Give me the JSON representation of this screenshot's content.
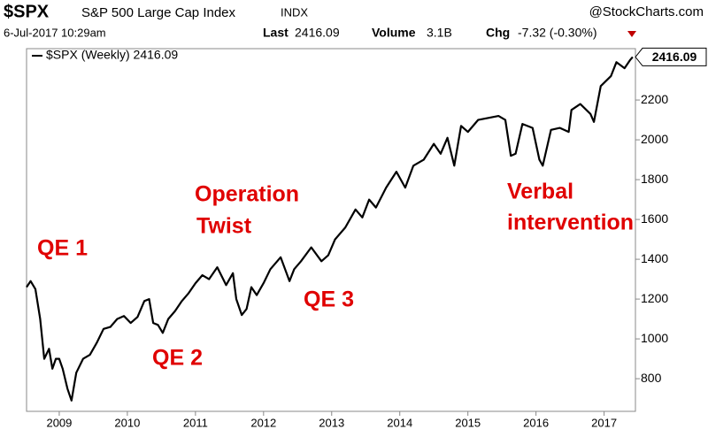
{
  "chart_data": {
    "type": "line",
    "symbol": "$SPX",
    "title": "S&P 500 Large Cap Index",
    "exchange": "INDX",
    "source": "@StockCharts.com",
    "date": "6-Jul-2017 10:29am",
    "last_label": "Last",
    "last": 2416.09,
    "volume_label": "Volume",
    "volume": "3.1B",
    "change_label": "Chg",
    "change": "-7.32 (-0.30%)",
    "annotations": [
      "QE 1",
      "Operation",
      "Twist",
      "QE 2",
      "QE 3",
      "Verbal",
      "intervention"
    ],
    "x": [
      2008.52,
      2008.58,
      2008.65,
      2008.72,
      2008.78,
      2008.85,
      2008.9,
      2008.95,
      2009.0,
      2009.05,
      2009.12,
      2009.18,
      2009.25,
      2009.35,
      2009.45,
      2009.55,
      2009.65,
      2009.75,
      2009.85,
      2009.95,
      2010.05,
      2010.15,
      2010.25,
      2010.32,
      2010.38,
      2010.45,
      2010.52,
      2010.6,
      2010.7,
      2010.8,
      2010.9,
      2011.0,
      2011.1,
      2011.2,
      2011.32,
      2011.45,
      2011.55,
      2011.6,
      2011.68,
      2011.75,
      2011.82,
      2011.9,
      2012.0,
      2012.1,
      2012.25,
      2012.38,
      2012.45,
      2012.55,
      2012.7,
      2012.85,
      2012.95,
      2013.05,
      2013.2,
      2013.35,
      2013.45,
      2013.55,
      2013.65,
      2013.8,
      2013.95,
      2014.08,
      2014.2,
      2014.35,
      2014.5,
      2014.6,
      2014.7,
      2014.8,
      2014.9,
      2015.0,
      2015.15,
      2015.3,
      2015.45,
      2015.55,
      2015.63,
      2015.7,
      2015.8,
      2015.95,
      2016.05,
      2016.1,
      2016.22,
      2016.35,
      2016.48,
      2016.52,
      2016.65,
      2016.8,
      2016.85,
      2016.95,
      2017.1,
      2017.18,
      2017.3,
      2017.38,
      2017.42
    ],
    "series": [
      {
        "name": "$SPX (Weekly) 2416.09",
        "color": "#000000",
        "values": [
          1260,
          1290,
          1250,
          1100,
          900,
          950,
          850,
          900,
          900,
          850,
          750,
          690,
          830,
          900,
          920,
          980,
          1050,
          1060,
          1100,
          1115,
          1080,
          1110,
          1190,
          1200,
          1080,
          1070,
          1030,
          1100,
          1140,
          1190,
          1230,
          1280,
          1320,
          1300,
          1360,
          1270,
          1330,
          1200,
          1120,
          1150,
          1260,
          1220,
          1280,
          1350,
          1410,
          1290,
          1350,
          1390,
          1460,
          1390,
          1420,
          1500,
          1560,
          1650,
          1610,
          1700,
          1660,
          1760,
          1840,
          1760,
          1870,
          1900,
          1980,
          1930,
          2010,
          1870,
          2070,
          2040,
          2100,
          2110,
          2120,
          2100,
          1920,
          1930,
          2080,
          2060,
          1900,
          1870,
          2050,
          2060,
          2040,
          2150,
          2180,
          2130,
          2090,
          2270,
          2320,
          2390,
          2360,
          2400,
          2416.09
        ]
      }
    ],
    "xlim": [
      2008.52,
      2017.46
    ],
    "xticks": [
      2009,
      2010,
      2011,
      2012,
      2013,
      2014,
      2015,
      2016,
      2017
    ],
    "ylim": [
      636,
      2458
    ],
    "yticks": [
      800,
      1000,
      1200,
      1400,
      1600,
      1800,
      2000,
      2200
    ]
  }
}
